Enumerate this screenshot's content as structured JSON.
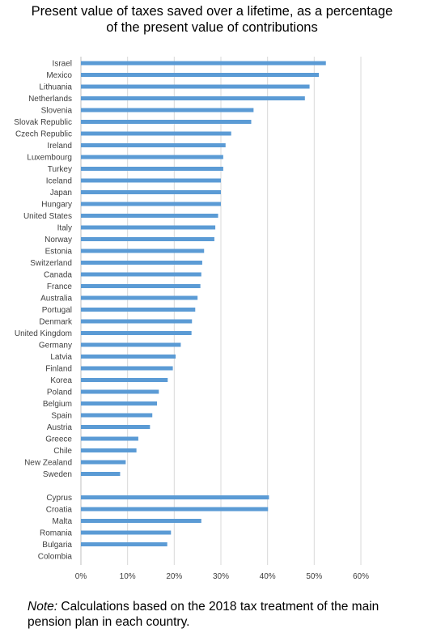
{
  "title_line1": "Present value of taxes saved over a lifetime, as a percentage",
  "title_line2": "of the present value of contributions",
  "note_label": "Note:",
  "note_text": " Calculations based on the 2018 tax treatment of the main pension plan in each country.",
  "chart_data": {
    "type": "bar",
    "orientation": "horizontal",
    "bar_color": "#5B9BD5",
    "grid": true,
    "xlim": [
      0,
      60
    ],
    "x_ticks": [
      "0%",
      "10%",
      "20%",
      "30%",
      "40%",
      "50%",
      "60%"
    ],
    "groups": [
      {
        "categories": [
          "Israel",
          "Mexico",
          "Lithuania",
          "Netherlands",
          "Slovenia",
          "Slovak Republic",
          "Czech Republic",
          "Ireland",
          "Luxembourg",
          "Turkey",
          "Iceland",
          "Japan",
          "Hungary",
          "United States",
          "Italy",
          "Norway",
          "Estonia",
          "Switzerland",
          "Canada",
          "France",
          "Australia",
          "Portugal",
          "Denmark",
          "United Kingdom",
          "Germany",
          "Latvia",
          "Finland",
          "Korea",
          "Poland",
          "Belgium",
          "Spain",
          "Austria",
          "Greece",
          "Chile",
          "New Zealand",
          "Sweden"
        ],
        "values": [
          52.5,
          51.0,
          49.0,
          48.0,
          37.0,
          36.5,
          32.2,
          31.0,
          30.5,
          30.5,
          30.0,
          30.0,
          30.0,
          29.4,
          28.8,
          28.6,
          26.4,
          26.0,
          25.8,
          25.6,
          25.0,
          24.5,
          23.8,
          23.7,
          21.4,
          20.3,
          19.7,
          18.6,
          16.7,
          16.3,
          15.3,
          14.8,
          12.3,
          11.9,
          9.6,
          8.4
        ]
      },
      {
        "categories": [
          "Cyprus",
          "Croatia",
          "Malta",
          "Romania",
          "Bulgaria",
          "Colombia"
        ],
        "values": [
          40.3,
          40.1,
          25.8,
          19.3,
          18.5,
          0
        ]
      }
    ]
  }
}
